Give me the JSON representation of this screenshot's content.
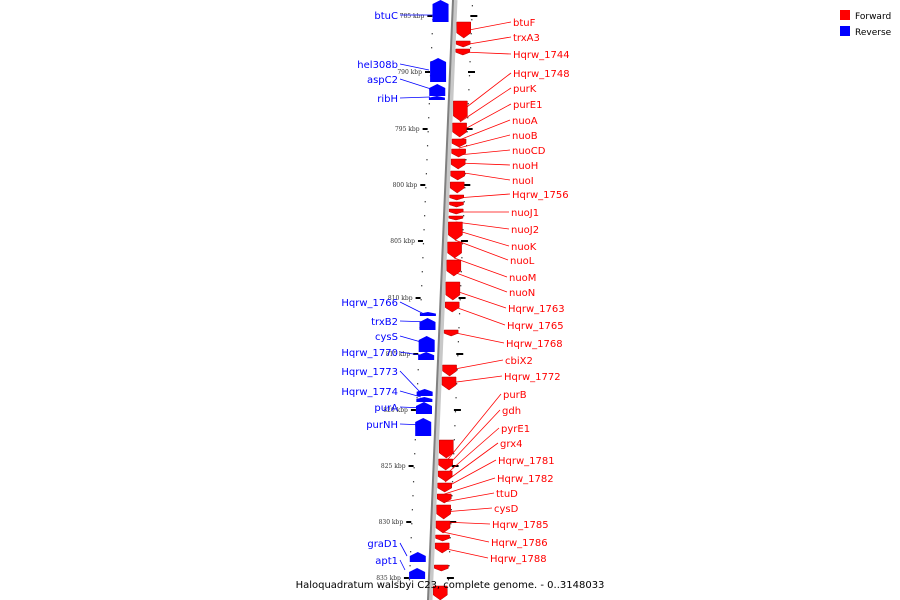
{
  "caption": "Haloquadratum walsbyi C23, complete genome. - 0..3148033",
  "legend": [
    {
      "label": "Forward",
      "color": "#ff0000"
    },
    {
      "label": "Reverse",
      "color": "#0000ff"
    }
  ],
  "colors": {
    "forward": "#ff0000",
    "reverse": "#0000ff",
    "axis": "#808080"
  },
  "ticks": [
    "785 kbp",
    "790 kbp",
    "795 kbp",
    "800 kbp",
    "805 kbp",
    "810 kbp",
    "815 kbp",
    "820 kbp",
    "825 kbp",
    "830 kbp",
    "835 kbp"
  ],
  "reverse_genes": [
    "btuC",
    "hel308b",
    "aspC2",
    "ribH",
    "Hqrw_1766",
    "trxB2",
    "cysS",
    "Hqrw_1770",
    "Hqrw_1773",
    "Hqrw_1774",
    "purA",
    "purNH",
    "graD1",
    "apt1"
  ],
  "forward_genes": [
    "btuF",
    "trxA3",
    "Hqrw_1744",
    "Hqrw_1748",
    "purK",
    "purE1",
    "nuoA",
    "nuoB",
    "nuoCD",
    "nuoH",
    "nuoI",
    "Hqrw_1756",
    "nuoJ1",
    "nuoJ2",
    "nuoK",
    "nuoL",
    "nuoM",
    "nuoN",
    "Hqrw_1763",
    "Hqrw_1765",
    "Hqrw_1768",
    "cbiX2",
    "Hqrw_1772",
    "purB",
    "gdh",
    "pyrE1",
    "grx4",
    "Hqrw_1781",
    "Hqrw_1782",
    "ttuD",
    "cysD",
    "Hqrw_1785",
    "Hqrw_1786",
    "Hqrw_1788"
  ]
}
